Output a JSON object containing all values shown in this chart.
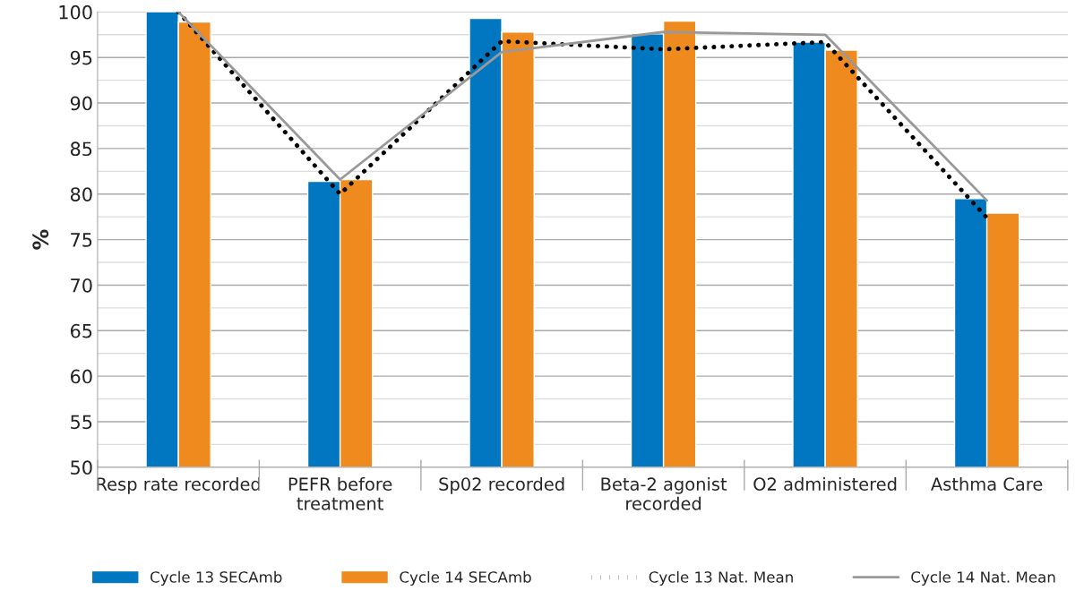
{
  "chart_data": {
    "type": "bar",
    "ylabel": "%",
    "categories": [
      "Resp rate recorded",
      "PEFR before\ntreatment",
      "Sp02 recorded",
      "Beta-2 agonist\nrecorded",
      "O2 administered",
      "Asthma Care"
    ],
    "series": [
      {
        "name": "Cycle 13 SECAmb",
        "color": "#0077c0",
        "values": [
          100,
          81.4,
          99.3,
          97.6,
          96.7,
          79.5
        ]
      },
      {
        "name": "Cycle 14 SECAmb",
        "color": "#ef8b1e",
        "values": [
          98.9,
          81.6,
          97.8,
          99.0,
          95.8,
          77.9
        ]
      },
      {
        "name": "Cycle 13 Nat. Mean",
        "type": "line",
        "color": "#000000",
        "line_style": "dotted",
        "values": [
          100,
          80.0,
          96.8,
          95.9,
          96.7,
          77.4
        ]
      },
      {
        "name": "Cycle 14 Nat. Mean",
        "type": "line",
        "color": "#999999",
        "line_style": "solid",
        "values": [
          100,
          81.6,
          95.6,
          97.8,
          97.5,
          79.3
        ]
      }
    ],
    "ylim": [
      50,
      100
    ],
    "yticks": [
      50,
      {
        "value": 52.5,
        "label": null
      },
      55,
      {
        "value": 57.5,
        "label": null
      },
      60,
      {
        "value": 62.5,
        "label": null
      },
      65,
      {
        "value": 67.5,
        "label": null
      },
      70,
      {
        "value": 72.5,
        "label": null
      },
      75,
      {
        "value": 77.5,
        "label": null
      },
      80,
      {
        "value": 82.5,
        "label": null
      },
      85,
      {
        "value": 87.5,
        "label": null
      },
      90,
      {
        "value": 92.5,
        "label": null
      },
      95,
      {
        "value": 97.5,
        "label": null
      },
      100
    ],
    "grid": "y",
    "legend": "bottom"
  }
}
